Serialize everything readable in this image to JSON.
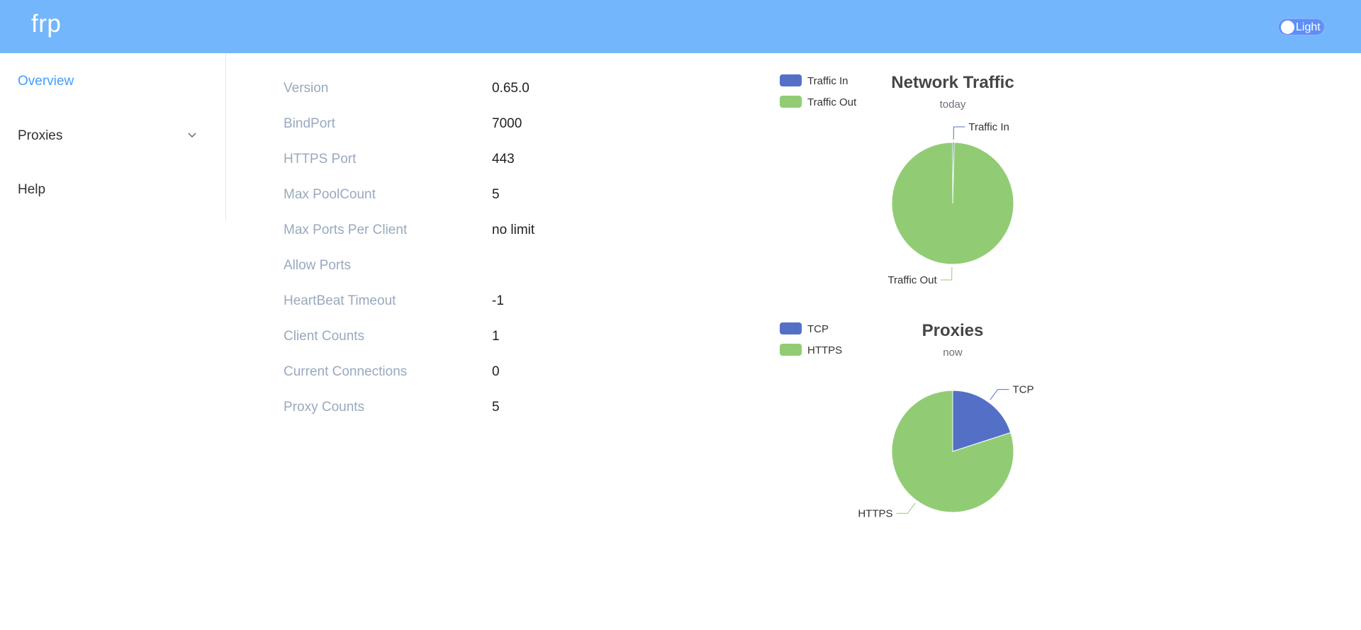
{
  "header": {
    "brand": "frp",
    "theme_toggle_label": "Light"
  },
  "sidebar": {
    "items": [
      {
        "label": "Overview",
        "active": true
      },
      {
        "label": "Proxies",
        "active": false,
        "has_submenu": true
      },
      {
        "label": "Help",
        "active": false
      }
    ]
  },
  "server_info": [
    {
      "key": "Version",
      "value": "0.65.0"
    },
    {
      "key": "BindPort",
      "value": "7000"
    },
    {
      "key": "HTTPS Port",
      "value": "443"
    },
    {
      "key": "Max PoolCount",
      "value": "5"
    },
    {
      "key": "Max Ports Per Client",
      "value": "no limit"
    },
    {
      "key": "Allow Ports",
      "value": ""
    },
    {
      "key": "HeartBeat Timeout",
      "value": "-1"
    },
    {
      "key": "Client Counts",
      "value": "1"
    },
    {
      "key": "Current Connections",
      "value": "0"
    },
    {
      "key": "Proxy Counts",
      "value": "5"
    }
  ],
  "colors": {
    "header": "#74b6fc",
    "active_menu": "#409eff",
    "series_blue": "#5470c6",
    "series_green": "#91cc75"
  },
  "chart_data": [
    {
      "type": "pie",
      "title": "Network Traffic",
      "subtitle": "today",
      "legend": "top-left",
      "series": [
        {
          "name": "Traffic In",
          "value": 0.4,
          "color": "#5470c6"
        },
        {
          "name": "Traffic Out",
          "value": 99.6,
          "color": "#91cc75"
        }
      ]
    },
    {
      "type": "pie",
      "title": "Proxies",
      "subtitle": "now",
      "legend": "top-left",
      "series": [
        {
          "name": "TCP",
          "value": 1,
          "color": "#5470c6"
        },
        {
          "name": "HTTPS",
          "value": 4,
          "color": "#91cc75"
        }
      ]
    }
  ]
}
